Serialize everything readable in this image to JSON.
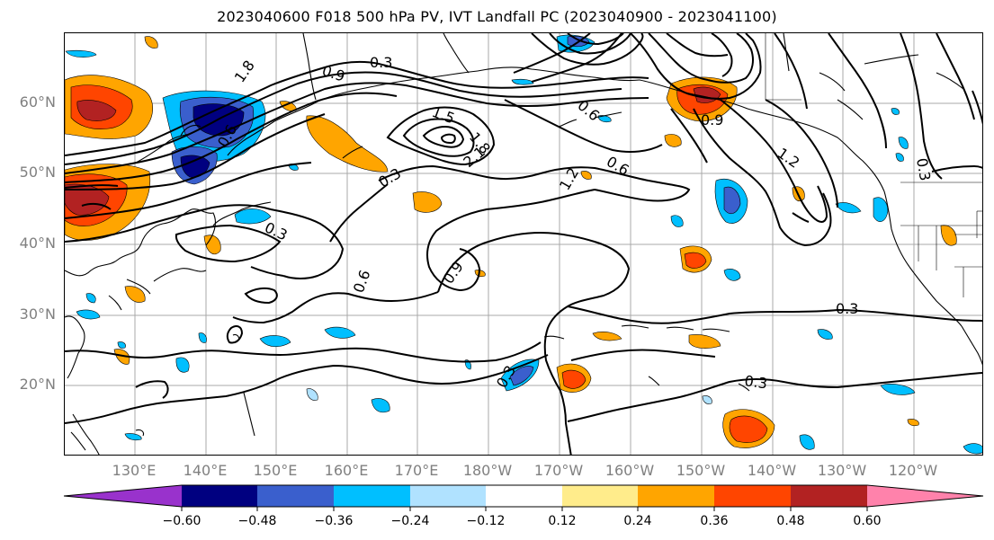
{
  "title": "2023040600 F018 500 hPa PV, IVT Landfall PC (2023040900 - 2023041100)",
  "lat_labels": [
    "60°N",
    "50°N",
    "40°N",
    "30°N",
    "20°N"
  ],
  "lon_labels": [
    "130°E",
    "140°E",
    "150°E",
    "160°E",
    "170°E",
    "180°W",
    "170°W",
    "160°W",
    "150°W",
    "140°W",
    "130°W",
    "120°W"
  ],
  "contour_labels": [
    "0.3",
    "0.9",
    "1.8",
    "1.5",
    "1.8",
    "2.1",
    "0.6",
    "0.9",
    "1.2",
    "0.6",
    "0.3",
    "0.3",
    "0.6",
    "0.9",
    "0.3",
    "0.3",
    "1.2",
    "0.3",
    "0.3",
    "0.6"
  ],
  "colorbar": {
    "ticks": [
      "−0.60",
      "−0.48",
      "−0.36",
      "−0.24",
      "−0.12",
      "0.12",
      "0.24",
      "0.36",
      "0.48",
      "0.60"
    ],
    "colors": [
      "#9932cc",
      "#000080",
      "#3a5fcd",
      "#00bfff",
      "#b0e2ff",
      "#ffffff",
      "#ffec8b",
      "#ffa500",
      "#ff4500",
      "#b22222",
      "#ff82ab"
    ]
  }
}
